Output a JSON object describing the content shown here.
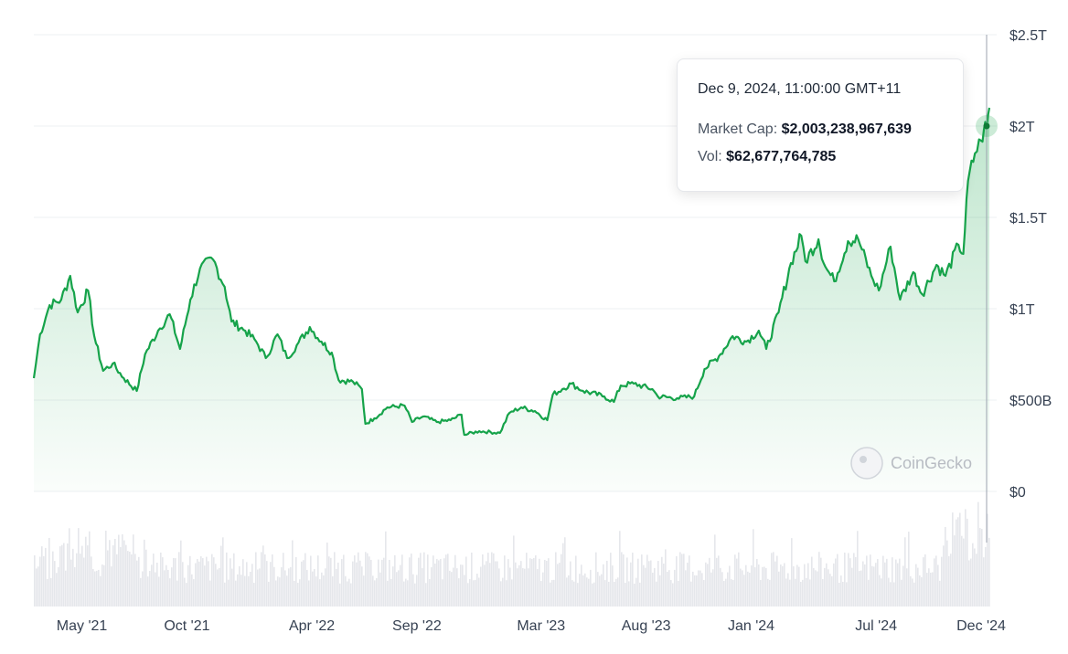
{
  "tooltip": {
    "date": "Dec 9, 2024, 11:00:00 GMT+11",
    "market_cap_label": "Market Cap:",
    "market_cap_value": "$2,003,238,967,639",
    "vol_label": "Vol:",
    "vol_value": "$62,677,764,785"
  },
  "watermark": "CoinGecko",
  "colors": {
    "line": "#16a34a",
    "area_top": "#16a34a",
    "volume": "#e5e7eb",
    "grid": "#eef0f3",
    "crosshair": "#9ca3af"
  },
  "chart_data": {
    "type": "area",
    "series": [
      {
        "values_unit": "USD trillions",
        "points": [
          [
            "2021-02-20",
            0.62
          ],
          [
            "2021-03-01",
            0.86
          ],
          [
            "2021-03-15",
            1.02
          ],
          [
            "2021-04-01",
            1.05
          ],
          [
            "2021-04-14",
            1.18
          ],
          [
            "2021-04-25",
            0.98
          ],
          [
            "2021-05-10",
            1.1
          ],
          [
            "2021-05-19",
            0.85
          ],
          [
            "2021-06-01",
            0.66
          ],
          [
            "2021-06-15",
            0.7
          ],
          [
            "2021-07-01",
            0.62
          ],
          [
            "2021-07-20",
            0.55
          ],
          [
            "2021-08-01",
            0.75
          ],
          [
            "2021-08-20",
            0.88
          ],
          [
            "2021-09-06",
            0.97
          ],
          [
            "2021-09-21",
            0.78
          ],
          [
            "2021-10-06",
            1.05
          ],
          [
            "2021-10-20",
            1.22
          ],
          [
            "2021-11-08",
            1.27
          ],
          [
            "2021-11-25",
            1.12
          ],
          [
            "2021-12-05",
            0.93
          ],
          [
            "2021-12-25",
            0.88
          ],
          [
            "2022-01-10",
            0.82
          ],
          [
            "2022-01-24",
            0.73
          ],
          [
            "2022-02-10",
            0.86
          ],
          [
            "2022-02-24",
            0.73
          ],
          [
            "2022-03-10",
            0.8
          ],
          [
            "2022-03-29",
            0.9
          ],
          [
            "2022-04-15",
            0.82
          ],
          [
            "2022-04-30",
            0.76
          ],
          [
            "2022-05-10",
            0.61
          ],
          [
            "2022-05-31",
            0.6
          ],
          [
            "2022-06-13",
            0.56
          ],
          [
            "2022-06-18",
            0.37
          ],
          [
            "2022-07-01",
            0.4
          ],
          [
            "2022-07-20",
            0.46
          ],
          [
            "2022-08-14",
            0.47
          ],
          [
            "2022-08-25",
            0.38
          ],
          [
            "2022-09-10",
            0.41
          ],
          [
            "2022-09-30",
            0.38
          ],
          [
            "2022-10-20",
            0.39
          ],
          [
            "2022-11-05",
            0.42
          ],
          [
            "2022-11-09",
            0.31
          ],
          [
            "2022-12-01",
            0.33
          ],
          [
            "2022-12-31",
            0.32
          ],
          [
            "2023-01-14",
            0.43
          ],
          [
            "2023-01-31",
            0.46
          ],
          [
            "2023-02-20",
            0.44
          ],
          [
            "2023-03-10",
            0.39
          ],
          [
            "2023-03-18",
            0.53
          ],
          [
            "2023-04-01",
            0.56
          ],
          [
            "2023-04-14",
            0.59
          ],
          [
            "2023-05-01",
            0.55
          ],
          [
            "2023-06-01",
            0.52
          ],
          [
            "2023-06-15",
            0.49
          ],
          [
            "2023-06-25",
            0.58
          ],
          [
            "2023-07-14",
            0.59
          ],
          [
            "2023-08-10",
            0.56
          ],
          [
            "2023-08-18",
            0.52
          ],
          [
            "2023-09-15",
            0.51
          ],
          [
            "2023-10-10",
            0.52
          ],
          [
            "2023-10-25",
            0.67
          ],
          [
            "2023-11-15",
            0.74
          ],
          [
            "2023-12-05",
            0.85
          ],
          [
            "2023-12-25",
            0.82
          ],
          [
            "2024-01-12",
            0.88
          ],
          [
            "2024-01-23",
            0.78
          ],
          [
            "2024-02-10",
            0.98
          ],
          [
            "2024-02-28",
            1.25
          ],
          [
            "2024-03-14",
            1.4
          ],
          [
            "2024-03-20",
            1.26
          ],
          [
            "2024-04-08",
            1.38
          ],
          [
            "2024-04-18",
            1.23
          ],
          [
            "2024-05-01",
            1.15
          ],
          [
            "2024-05-21",
            1.37
          ],
          [
            "2024-06-05",
            1.38
          ],
          [
            "2024-06-24",
            1.18
          ],
          [
            "2024-07-05",
            1.1
          ],
          [
            "2024-07-22",
            1.34
          ],
          [
            "2024-08-05",
            1.05
          ],
          [
            "2024-08-24",
            1.2
          ],
          [
            "2024-09-06",
            1.08
          ],
          [
            "2024-09-27",
            1.24
          ],
          [
            "2024-10-10",
            1.18
          ],
          [
            "2024-10-29",
            1.35
          ],
          [
            "2024-11-05",
            1.3
          ],
          [
            "2024-11-12",
            1.7
          ],
          [
            "2024-11-22",
            1.85
          ],
          [
            "2024-12-01",
            1.92
          ],
          [
            "2024-12-05",
            1.98
          ],
          [
            "2024-12-09",
            2.0
          ],
          [
            "2024-12-13",
            2.1
          ]
        ]
      }
    ],
    "yticks": [
      "$2.5T",
      "$2T",
      "$1.5T",
      "$1T",
      "$500B",
      "$0"
    ],
    "ytick_values": [
      2.5,
      2.0,
      1.5,
      1.0,
      0.5,
      0
    ],
    "ylim": [
      0,
      2.5
    ],
    "xticks": [
      "May '21",
      "Oct '21",
      "Apr '22",
      "Sep '22",
      "Mar '23",
      "Aug '23",
      "Jan '24",
      "Jul '24",
      "Dec '24"
    ],
    "xtick_dates": [
      "2021-05-01",
      "2021-10-01",
      "2022-04-01",
      "2022-09-01",
      "2023-03-01",
      "2023-08-01",
      "2024-01-01",
      "2024-07-01",
      "2024-12-01"
    ],
    "xlim": [
      "2021-02-20",
      "2024-12-13"
    ],
    "highlight_date": "2024-12-09",
    "highlight_value": 2.0,
    "grid": true,
    "volume_bars": true
  }
}
